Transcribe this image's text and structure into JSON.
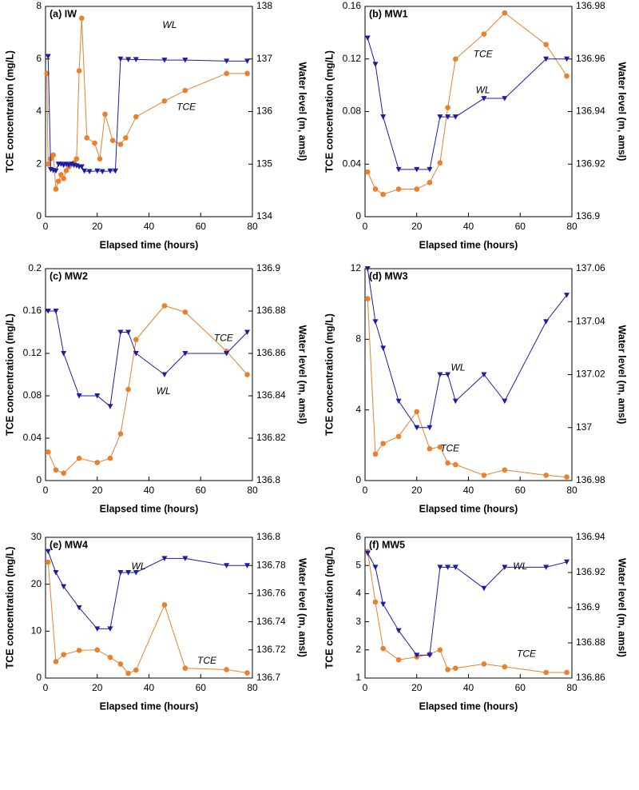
{
  "chart_data": [
    {
      "type": "line",
      "title": "(a) IW",
      "xlabel": "Elapsed time (hours)",
      "ylabel": "TCE concentration (mg/L)",
      "y2label": "Water level (m, amsl)",
      "xlim": [
        0,
        80
      ],
      "xticks": [
        0,
        20,
        40,
        60,
        80
      ],
      "ylim": [
        0,
        8
      ],
      "yticks": [
        0,
        2,
        4,
        6,
        8
      ],
      "y2lim": [
        134,
        138
      ],
      "y2ticks": [
        134,
        135,
        136,
        137,
        138
      ],
      "series": [
        {
          "name": "TCE",
          "color": "#e8802e",
          "marker": "circle",
          "x": [
            0.5,
            1,
            2,
            3,
            4,
            5,
            6,
            7,
            8,
            9,
            10,
            11,
            12,
            13,
            14,
            16,
            19,
            21,
            23,
            26,
            29,
            31,
            35,
            46,
            54,
            70,
            78
          ],
          "values": [
            5.45,
            2.0,
            2.2,
            2.35,
            1.05,
            1.35,
            1.6,
            1.45,
            1.75,
            1.9,
            2.0,
            2.05,
            2.2,
            5.55,
            7.55,
            3.0,
            2.8,
            2.2,
            3.9,
            2.9,
            2.75,
            3.0,
            3.8,
            4.4,
            4.8,
            5.45,
            5.45
          ]
        },
        {
          "name": "WL",
          "color": "#1c1ca6",
          "marker": "triangle-down",
          "axis": "y2",
          "x": [
            1,
            2,
            3,
            4,
            5,
            6,
            7,
            8,
            9,
            10,
            11,
            12,
            13,
            14,
            15,
            17,
            20,
            22,
            25,
            27,
            29,
            32,
            35,
            46,
            54,
            70,
            78
          ],
          "values": [
            137.05,
            134.9,
            134.88,
            134.87,
            135.0,
            135.0,
            134.98,
            135.0,
            134.98,
            135.0,
            134.98,
            134.97,
            134.95,
            134.95,
            134.87,
            134.86,
            134.87,
            134.86,
            134.87,
            134.87,
            137.0,
            136.99,
            136.99,
            136.98,
            136.98,
            136.96,
            136.96
          ]
        }
      ]
    },
    {
      "type": "line",
      "title": "(b) MW1",
      "xlabel": "Elapsed time (hours)",
      "ylabel": "TCE concentration (mg/L)",
      "y2label": "Water level (m, amsl)",
      "xlim": [
        0,
        80
      ],
      "xticks": [
        0,
        20,
        40,
        60,
        80
      ],
      "ylim": [
        0,
        0.16
      ],
      "yticks": [
        0,
        0.04,
        0.08,
        0.12,
        0.16
      ],
      "y2lim": [
        136.9,
        136.98
      ],
      "y2ticks": [
        136.9,
        136.92,
        136.94,
        136.96,
        136.98
      ],
      "series": [
        {
          "name": "TCE",
          "color": "#e8802e",
          "marker": "circle",
          "x": [
            1,
            4,
            7,
            13,
            20,
            25,
            29,
            32,
            35,
            46,
            54,
            70,
            78
          ],
          "values": [
            0.034,
            0.021,
            0.017,
            0.021,
            0.021,
            0.026,
            0.041,
            0.083,
            0.12,
            0.139,
            0.155,
            0.131,
            0.107
          ]
        },
        {
          "name": "WL",
          "color": "#1c1ca6",
          "marker": "triangle-down",
          "axis": "y2",
          "x": [
            1,
            4,
            7,
            13,
            20,
            25,
            29,
            32,
            35,
            46,
            54,
            70,
            78
          ],
          "values": [
            136.968,
            136.958,
            136.938,
            136.918,
            136.918,
            136.918,
            136.938,
            136.938,
            136.938,
            136.945,
            136.945,
            136.96,
            136.96
          ]
        }
      ]
    },
    {
      "type": "line",
      "title": "(c) MW2",
      "xlabel": "Elapsed time (hours)",
      "ylabel": "TCE concentration (mg/L)",
      "y2label": "Water level (m, amsl)",
      "xlim": [
        0,
        80
      ],
      "xticks": [
        0,
        20,
        40,
        60,
        80
      ],
      "ylim": [
        0,
        0.2
      ],
      "yticks": [
        0,
        0.04,
        0.08,
        0.12,
        0.16,
        0.2
      ],
      "y2lim": [
        136.8,
        136.9
      ],
      "y2ticks": [
        136.8,
        136.82,
        136.84,
        136.86,
        136.88,
        136.9
      ],
      "series": [
        {
          "name": "TCE",
          "color": "#e8802e",
          "marker": "circle",
          "x": [
            1,
            4,
            7,
            13,
            20,
            25,
            29,
            32,
            35,
            46,
            54,
            70,
            78
          ],
          "values": [
            0.027,
            0.01,
            0.007,
            0.021,
            0.017,
            0.021,
            0.044,
            0.086,
            0.133,
            0.165,
            0.159,
            0.122,
            0.1
          ]
        },
        {
          "name": "WL",
          "color": "#1c1ca6",
          "marker": "triangle-down",
          "axis": "y2",
          "x": [
            1,
            4,
            7,
            13,
            20,
            25,
            29,
            32,
            35,
            46,
            54,
            70,
            78
          ],
          "values": [
            136.88,
            136.88,
            136.86,
            136.84,
            136.84,
            136.835,
            136.87,
            136.87,
            136.86,
            136.85,
            136.86,
            136.86,
            136.87
          ]
        }
      ]
    },
    {
      "type": "line",
      "title": "(d) MW3",
      "xlabel": "Elapsed time (hours)",
      "ylabel": "TCE concentration (mg/L)",
      "y2label": "Water level (m, amsl)",
      "xlim": [
        0,
        80
      ],
      "xticks": [
        0,
        20,
        40,
        60,
        80
      ],
      "ylim": [
        0,
        12
      ],
      "yticks": [
        0,
        4,
        8,
        12
      ],
      "y2lim": [
        136.98,
        137.06
      ],
      "y2ticks": [
        136.98,
        137,
        137.02,
        137.04,
        137.06
      ],
      "series": [
        {
          "name": "TCE",
          "color": "#e8802e",
          "marker": "circle",
          "x": [
            1,
            4,
            7,
            13,
            20,
            25,
            29,
            32,
            35,
            46,
            54,
            70,
            78
          ],
          "values": [
            10.3,
            1.5,
            2.1,
            2.5,
            3.9,
            1.8,
            1.9,
            1.0,
            0.9,
            0.3,
            0.6,
            0.3,
            0.2
          ]
        },
        {
          "name": "WL",
          "color": "#1c1ca6",
          "marker": "triangle-down",
          "axis": "y2",
          "x": [
            1,
            4,
            7,
            13,
            20,
            25,
            29,
            32,
            35,
            46,
            54,
            70,
            78
          ],
          "values": [
            137.06,
            137.04,
            137.03,
            137.01,
            137.0,
            137.0,
            137.02,
            137.02,
            137.01,
            137.02,
            137.01,
            137.04,
            137.05
          ]
        }
      ]
    },
    {
      "type": "line",
      "title": "(e) MW4",
      "xlabel": "Elapsed time (hours)",
      "ylabel": "TCE concentration (mg/L)",
      "y2label": "Water level (m, amsl)",
      "xlim": [
        0,
        80
      ],
      "xticks": [
        0,
        20,
        40,
        60,
        80
      ],
      "ylim": [
        0,
        30
      ],
      "yticks": [
        0,
        10,
        20,
        30
      ],
      "y2lim": [
        136.7,
        136.8
      ],
      "y2ticks": [
        136.7,
        136.72,
        136.74,
        136.76,
        136.78,
        136.8
      ],
      "series": [
        {
          "name": "TCE",
          "color": "#e8802e",
          "marker": "circle",
          "x": [
            1,
            4,
            7,
            13,
            20,
            25,
            29,
            32,
            35,
            46,
            54,
            70,
            78
          ],
          "values": [
            24.7,
            3.5,
            5.0,
            5.9,
            6.0,
            4.4,
            3.0,
            1.0,
            1.7,
            15.6,
            2.1,
            1.8,
            1.1
          ]
        },
        {
          "name": "WL",
          "color": "#1c1ca6",
          "marker": "triangle-down",
          "axis": "y2",
          "x": [
            1,
            4,
            7,
            13,
            20,
            25,
            29,
            32,
            35,
            46,
            54,
            70,
            78
          ],
          "values": [
            136.79,
            136.775,
            136.765,
            136.75,
            136.735,
            136.735,
            136.775,
            136.775,
            136.775,
            136.785,
            136.785,
            136.78,
            136.78
          ]
        }
      ]
    },
    {
      "type": "line",
      "title": "(f) MW5",
      "xlabel": "Elapsed time (hours)",
      "ylabel": "TCE concentration (mg/L)",
      "y2label": "Water level (m, amsl)",
      "xlim": [
        0,
        80
      ],
      "xticks": [
        0,
        20,
        40,
        60,
        80
      ],
      "ylim": [
        1,
        6
      ],
      "yticks": [
        1,
        2,
        3,
        4,
        5,
        6
      ],
      "y2lim": [
        136.86,
        136.94
      ],
      "y2ticks": [
        136.86,
        136.88,
        136.9,
        136.92,
        136.94
      ],
      "series": [
        {
          "name": "TCE",
          "color": "#e8802e",
          "marker": "circle",
          "x": [
            1,
            4,
            7,
            13,
            20,
            25,
            29,
            32,
            35,
            46,
            54,
            70,
            78
          ],
          "values": [
            5.5,
            3.7,
            2.05,
            1.65,
            1.75,
            1.85,
            2.0,
            1.3,
            1.35,
            1.5,
            1.4,
            1.2,
            1.2
          ]
        },
        {
          "name": "WL",
          "color": "#1c1ca6",
          "marker": "triangle-down",
          "axis": "y2",
          "x": [
            1,
            4,
            7,
            13,
            20,
            25,
            29,
            32,
            35,
            46,
            54,
            70,
            78
          ],
          "values": [
            136.931,
            136.923,
            136.902,
            136.887,
            136.873,
            136.873,
            136.923,
            136.923,
            136.923,
            136.911,
            136.923,
            136.923,
            136.926
          ]
        }
      ]
    }
  ]
}
